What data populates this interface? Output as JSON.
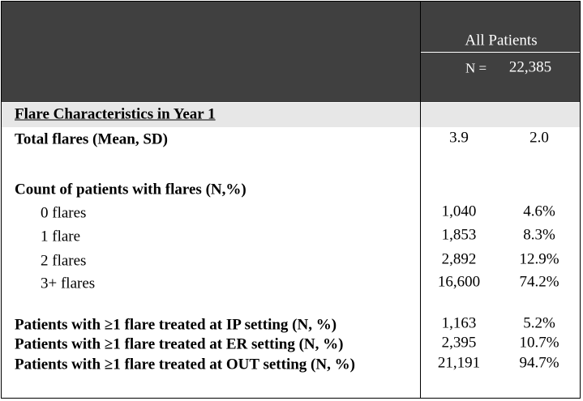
{
  "header": {
    "column_title": "All Patients",
    "n_label": "N =",
    "n_value": "22,385"
  },
  "section_title": "Flare Characteristics in Year 1",
  "rows": [
    {
      "label": "Total flares (Mean, SD)",
      "values": [
        "3.9",
        "2.0"
      ]
    },
    {
      "label": "Count of patients with flares (N,%)"
    },
    {
      "label": "0 flares",
      "values": [
        "1,040",
        "4.6%"
      ]
    },
    {
      "label": "1 flare",
      "values": [
        "1,853",
        "8.3%"
      ]
    },
    {
      "label": "2 flares",
      "values": [
        "2,892",
        "12.9%"
      ]
    },
    {
      "label": "3+ flares",
      "values": [
        "16,600",
        "74.2%"
      ]
    },
    {
      "label": "Patients with ≥1 flare treated at IP setting (N, %)",
      "values": [
        "1,163",
        "5.2%"
      ]
    },
    {
      "label": "Patients with ≥1 flare treated at ER setting (N, %)",
      "values": [
        "2,395",
        "10.7%"
      ]
    },
    {
      "label": "Patients with ≥1 flare treated at OUT setting (N, %)",
      "values": [
        "21,191",
        "94.7%"
      ]
    }
  ]
}
